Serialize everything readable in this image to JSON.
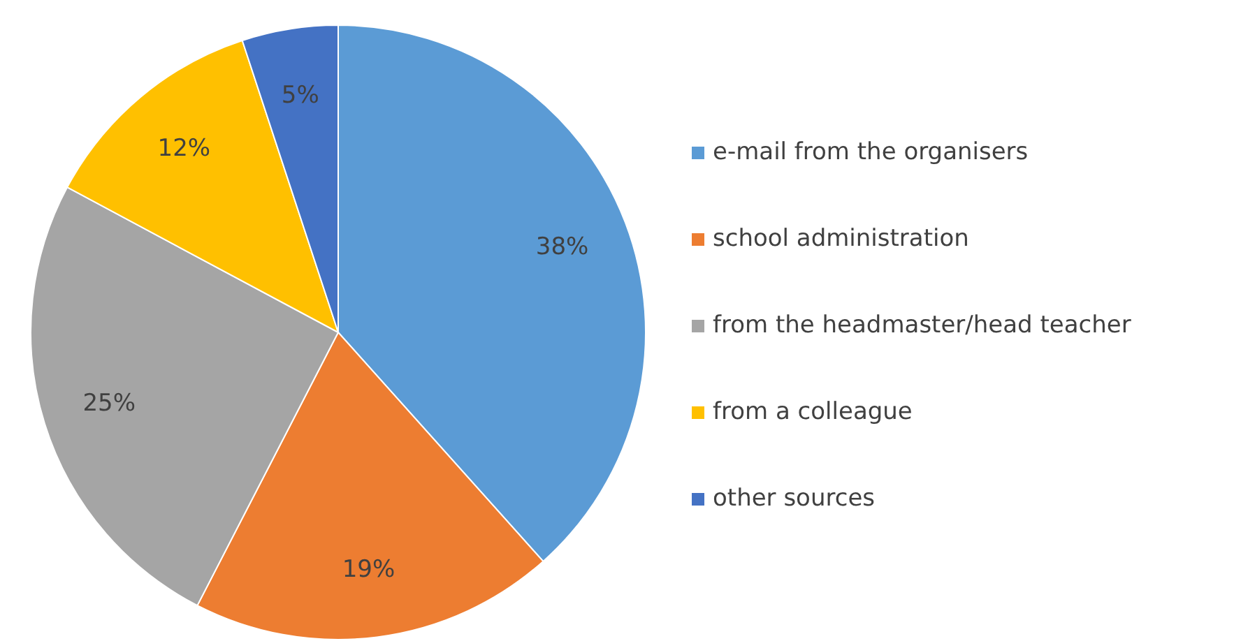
{
  "chart_data": {
    "type": "pie",
    "categories": [
      "e-mail from the organisers",
      "school administration",
      "from the headmaster/head teacher",
      "from a colleague",
      "other sources"
    ],
    "values": [
      38,
      19,
      25,
      12,
      5
    ],
    "value_labels": [
      "38%",
      "19%",
      "25%",
      "12%",
      "5%"
    ],
    "colors": [
      "#5b9bd5",
      "#ed7d31",
      "#a5a5a5",
      "#ffc000",
      "#4472c4"
    ],
    "legend": "right"
  }
}
